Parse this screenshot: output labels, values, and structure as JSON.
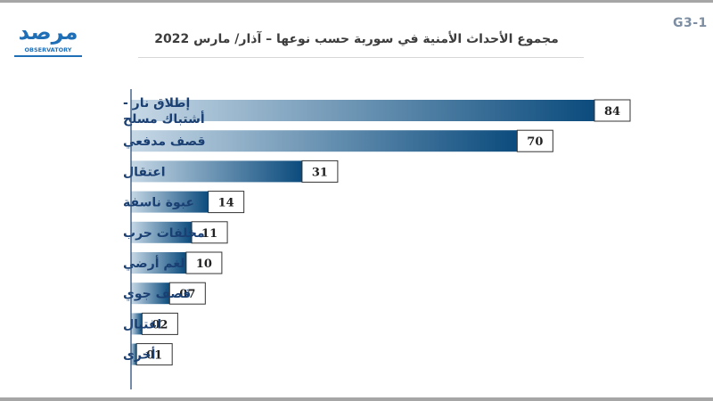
{
  "header": {
    "code": "G3-1",
    "title": "مجموع الأحداث الأمنية في سورية حسب نوعها – آذار/ مارس 2022",
    "logo_text": "مرصد",
    "logo_subtext": "OBSERVATORY"
  },
  "colors": {
    "bar_dark": "#0b4b7d",
    "bar_light": "#c6d8e6",
    "label": "#1a3f73",
    "code": "#7d8ea3"
  },
  "chart_data": {
    "type": "bar",
    "orientation": "horizontal",
    "title": "مجموع الأحداث الأمنية في سورية حسب نوعها – آذار/ مارس 2022",
    "categories": [
      [
        "إطلاق نار -",
        "أشتباك مسلح"
      ],
      [
        "قصف مدفعي"
      ],
      [
        "اعتقال"
      ],
      [
        "عبوة ناسفة"
      ],
      [
        "مخلفات حرب"
      ],
      [
        "لغم أرضي"
      ],
      [
        "قصف جوي"
      ],
      [
        "اغتيال"
      ],
      [
        "أخرى"
      ]
    ],
    "values": [
      84,
      70,
      31,
      14,
      11,
      10,
      7,
      2,
      1
    ],
    "value_labels": [
      "84",
      "70",
      "31",
      "14",
      "11",
      "10",
      "07",
      "02",
      "01"
    ],
    "xlim": [
      0,
      84
    ],
    "grid": false,
    "legend": "none"
  }
}
